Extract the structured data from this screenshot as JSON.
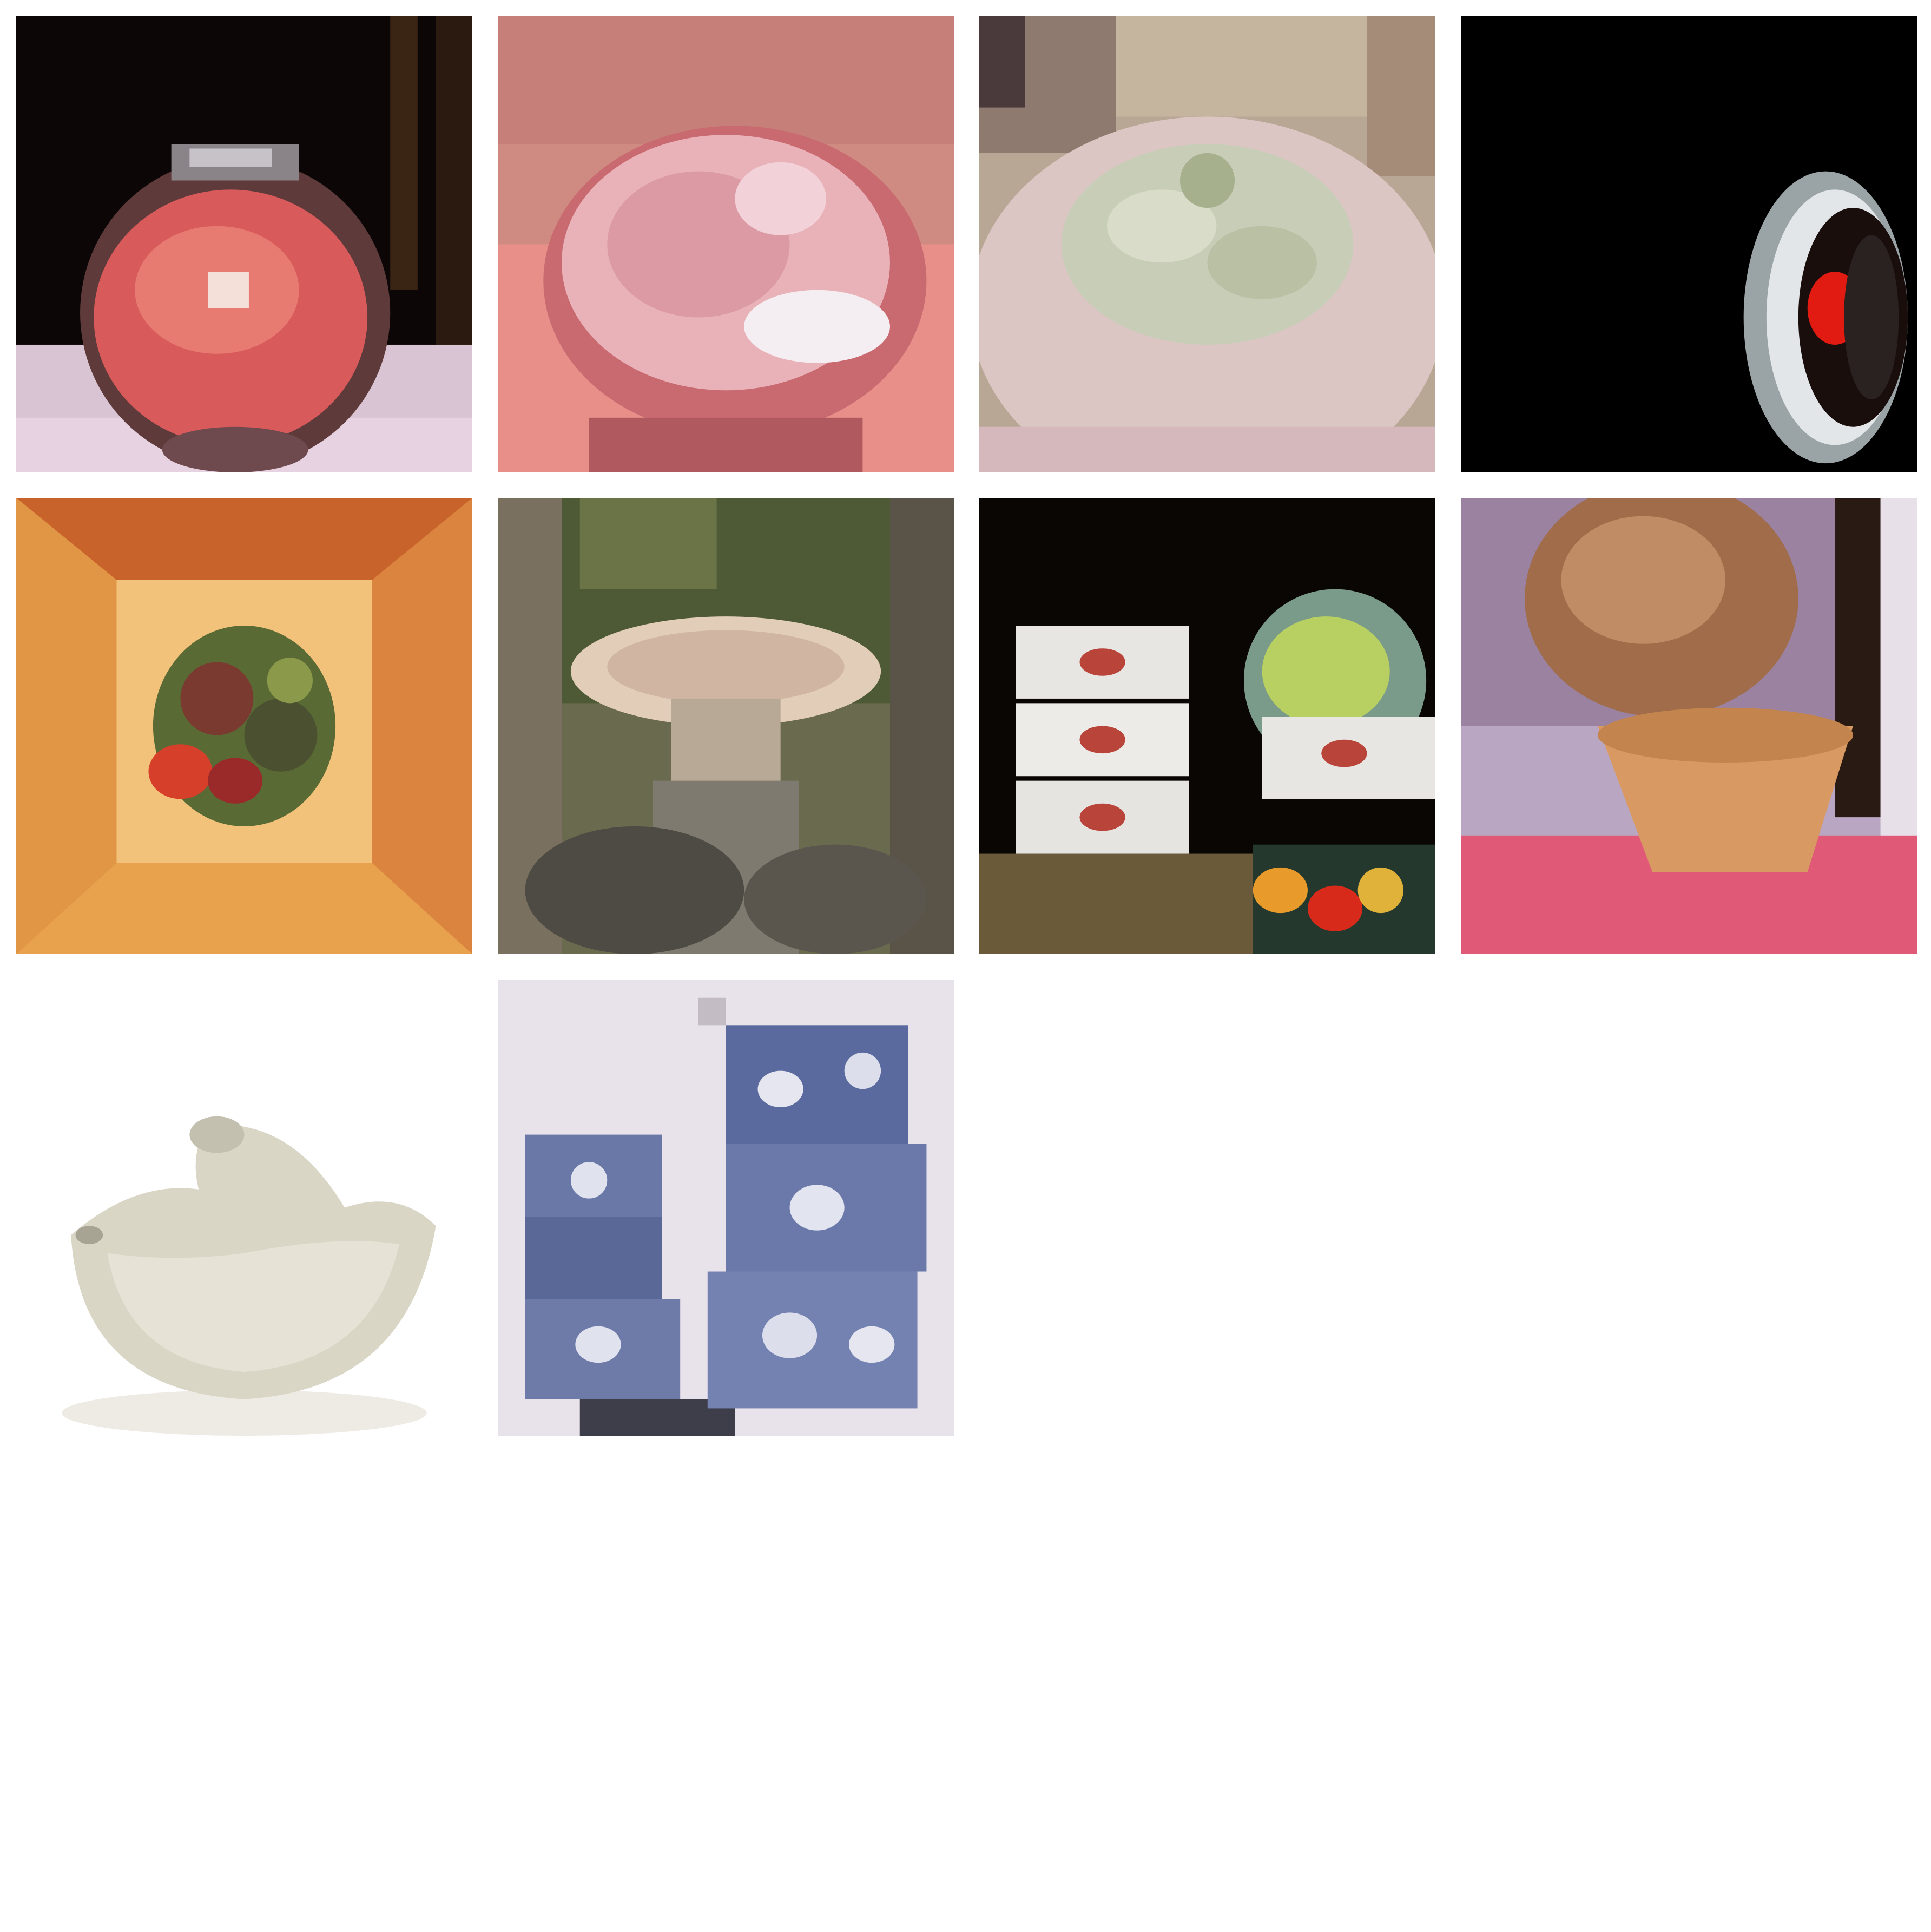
{
  "grid": {
    "tiles": [
      {
        "subject": "bowl-red-glass-icon"
      },
      {
        "subject": "bowl-pink-closeup-icon"
      },
      {
        "subject": "bowl-white-rice-icon"
      },
      {
        "subject": "bowl-dark-red-icon"
      },
      {
        "subject": "bowl-orange-salad-icon"
      },
      {
        "subject": "bowl-stone-birdbath-icon"
      },
      {
        "subject": "bowl-stacked-boxes-icon"
      },
      {
        "subject": "bowl-wooden-icon"
      },
      {
        "subject": "bowl-white-ceramic-icon"
      },
      {
        "subject": "bowl-blue-white-porcelain-icon"
      }
    ]
  },
  "colors": {
    "background": "#ffffff"
  }
}
